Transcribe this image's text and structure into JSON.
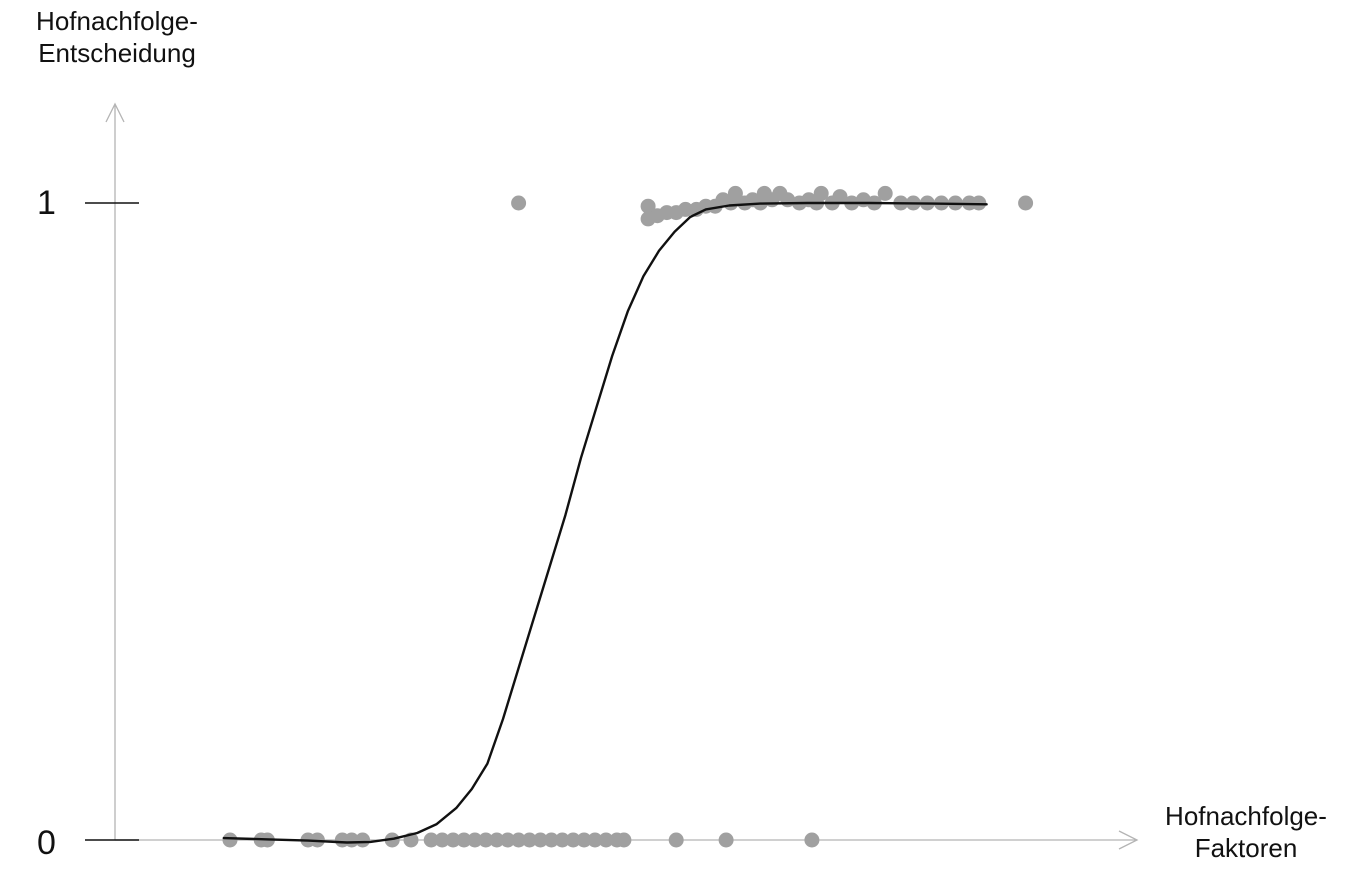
{
  "chart_data": {
    "type": "scatter",
    "ylabel_lines": [
      "Hofnachfolge-",
      "Entscheidung"
    ],
    "xlabel_lines": [
      "Hofnachfolge-",
      "Faktoren"
    ],
    "yticks": [
      {
        "value": 0,
        "label": "0"
      },
      {
        "value": 1,
        "label": "1"
      }
    ],
    "ylim": [
      0,
      1
    ],
    "grid": false,
    "legend": "none",
    "colors": {
      "points": "#a0a0a0",
      "curve": "#111111",
      "axis": "#b4b4b4",
      "tick": "#111111"
    },
    "series": [
      {
        "kind": "points",
        "values": [
          [
            0.0,
            0.0
          ],
          [
            0.04,
            0.0
          ],
          [
            0.048,
            0.0
          ],
          [
            0.1,
            0.0
          ],
          [
            0.112,
            0.0
          ],
          [
            0.144,
            0.0
          ],
          [
            0.156,
            0.0
          ],
          [
            0.17,
            0.0
          ],
          [
            0.208,
            0.0
          ],
          [
            0.232,
            0.0
          ],
          [
            0.258,
            0.0
          ],
          [
            0.272,
            0.0
          ],
          [
            0.286,
            0.0
          ],
          [
            0.3,
            0.0
          ],
          [
            0.314,
            0.0
          ],
          [
            0.328,
            0.0
          ],
          [
            0.342,
            0.0
          ],
          [
            0.356,
            0.0
          ],
          [
            0.37,
            0.0
          ],
          [
            0.384,
            0.0
          ],
          [
            0.398,
            0.0
          ],
          [
            0.412,
            0.0
          ],
          [
            0.426,
            0.0
          ],
          [
            0.44,
            0.0
          ],
          [
            0.454,
            0.0
          ],
          [
            0.468,
            0.0
          ],
          [
            0.482,
            0.0
          ],
          [
            0.496,
            0.0
          ],
          [
            0.505,
            0.0
          ],
          [
            0.572,
            0.0
          ],
          [
            0.636,
            0.0
          ],
          [
            0.746,
            0.0
          ],
          [
            0.37,
            1.0
          ],
          [
            0.536,
            0.995
          ],
          [
            0.536,
            0.975
          ],
          [
            0.548,
            0.98
          ],
          [
            0.56,
            0.985
          ],
          [
            0.572,
            0.985
          ],
          [
            0.584,
            0.99
          ],
          [
            0.598,
            0.99
          ],
          [
            0.61,
            0.995
          ],
          [
            0.622,
            0.995
          ],
          [
            0.632,
            1.005
          ],
          [
            0.642,
            1.0
          ],
          [
            0.648,
            1.015
          ],
          [
            0.66,
            1.0
          ],
          [
            0.67,
            1.005
          ],
          [
            0.68,
            1.0
          ],
          [
            0.685,
            1.015
          ],
          [
            0.695,
            1.005
          ],
          [
            0.705,
            1.015
          ],
          [
            0.715,
            1.005
          ],
          [
            0.73,
            1.0
          ],
          [
            0.742,
            1.005
          ],
          [
            0.752,
            1.0
          ],
          [
            0.758,
            1.015
          ],
          [
            0.772,
            1.0
          ],
          [
            0.782,
            1.01
          ],
          [
            0.797,
            1.0
          ],
          [
            0.812,
            1.005
          ],
          [
            0.826,
            1.0
          ],
          [
            0.84,
            1.015
          ],
          [
            0.86,
            1.0
          ],
          [
            0.876,
            1.0
          ],
          [
            0.894,
            1.0
          ],
          [
            0.912,
            1.0
          ],
          [
            0.93,
            1.0
          ],
          [
            0.948,
            1.0
          ],
          [
            0.96,
            1.0
          ],
          [
            1.02,
            1.0
          ]
        ]
      },
      {
        "kind": "curve",
        "values": [
          [
            -0.008,
            0.003
          ],
          [
            0.05,
            0.001
          ],
          [
            0.1,
            -0.001
          ],
          [
            0.15,
            -0.004
          ],
          [
            0.18,
            -0.003
          ],
          [
            0.21,
            0.002
          ],
          [
            0.24,
            0.011
          ],
          [
            0.265,
            0.025
          ],
          [
            0.29,
            0.05
          ],
          [
            0.31,
            0.08
          ],
          [
            0.33,
            0.12
          ],
          [
            0.35,
            0.19
          ],
          [
            0.37,
            0.27
          ],
          [
            0.39,
            0.35
          ],
          [
            0.41,
            0.43
          ],
          [
            0.43,
            0.51
          ],
          [
            0.45,
            0.6
          ],
          [
            0.47,
            0.68
          ],
          [
            0.49,
            0.76
          ],
          [
            0.51,
            0.83
          ],
          [
            0.53,
            0.885
          ],
          [
            0.55,
            0.925
          ],
          [
            0.57,
            0.955
          ],
          [
            0.59,
            0.978
          ],
          [
            0.61,
            0.99
          ],
          [
            0.64,
            0.996
          ],
          [
            0.68,
            0.999
          ],
          [
            0.74,
            1.0
          ],
          [
            0.82,
            1.0
          ],
          [
            0.9,
            0.999
          ],
          [
            0.97,
            0.998
          ]
        ]
      }
    ]
  }
}
